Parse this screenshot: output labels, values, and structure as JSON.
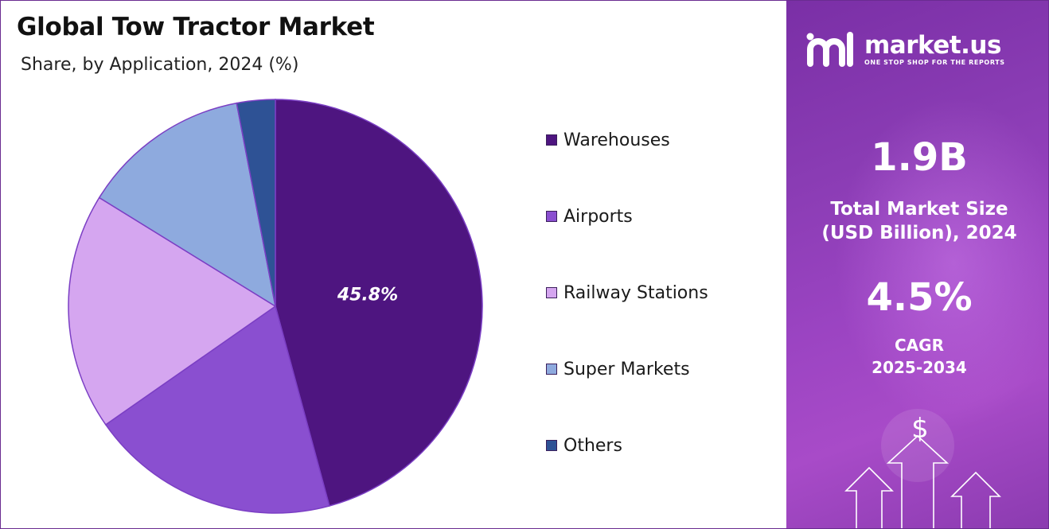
{
  "header": {
    "title": "Global Tow Tractor Market",
    "subtitle": "Share, by Application, 2024 (%)"
  },
  "chart_data": {
    "type": "pie",
    "categories": [
      "Warehouses",
      "Airports",
      "Railway Stations",
      "Super Markets",
      "Others"
    ],
    "values": [
      45.8,
      19.5,
      18.5,
      13.2,
      3.0
    ],
    "colors": [
      "#4e1580",
      "#8a4fd0",
      "#d5a6f0",
      "#8eaade",
      "#2e5295"
    ],
    "data_labels": [
      "45.8%",
      "",
      "",
      "",
      ""
    ],
    "legend_position": "right"
  },
  "sidebar": {
    "brand_name": "market.us",
    "brand_tagline": "ONE STOP SHOP FOR THE REPORTS",
    "market_size_value": "1.9B",
    "market_size_label_line1": "Total Market Size",
    "market_size_label_line2": "(USD Billion), 2024",
    "cagr_value": "4.5%",
    "cagr_label_line1": "CAGR",
    "cagr_label_line2": "2025-2034",
    "dollar_symbol": "$"
  }
}
